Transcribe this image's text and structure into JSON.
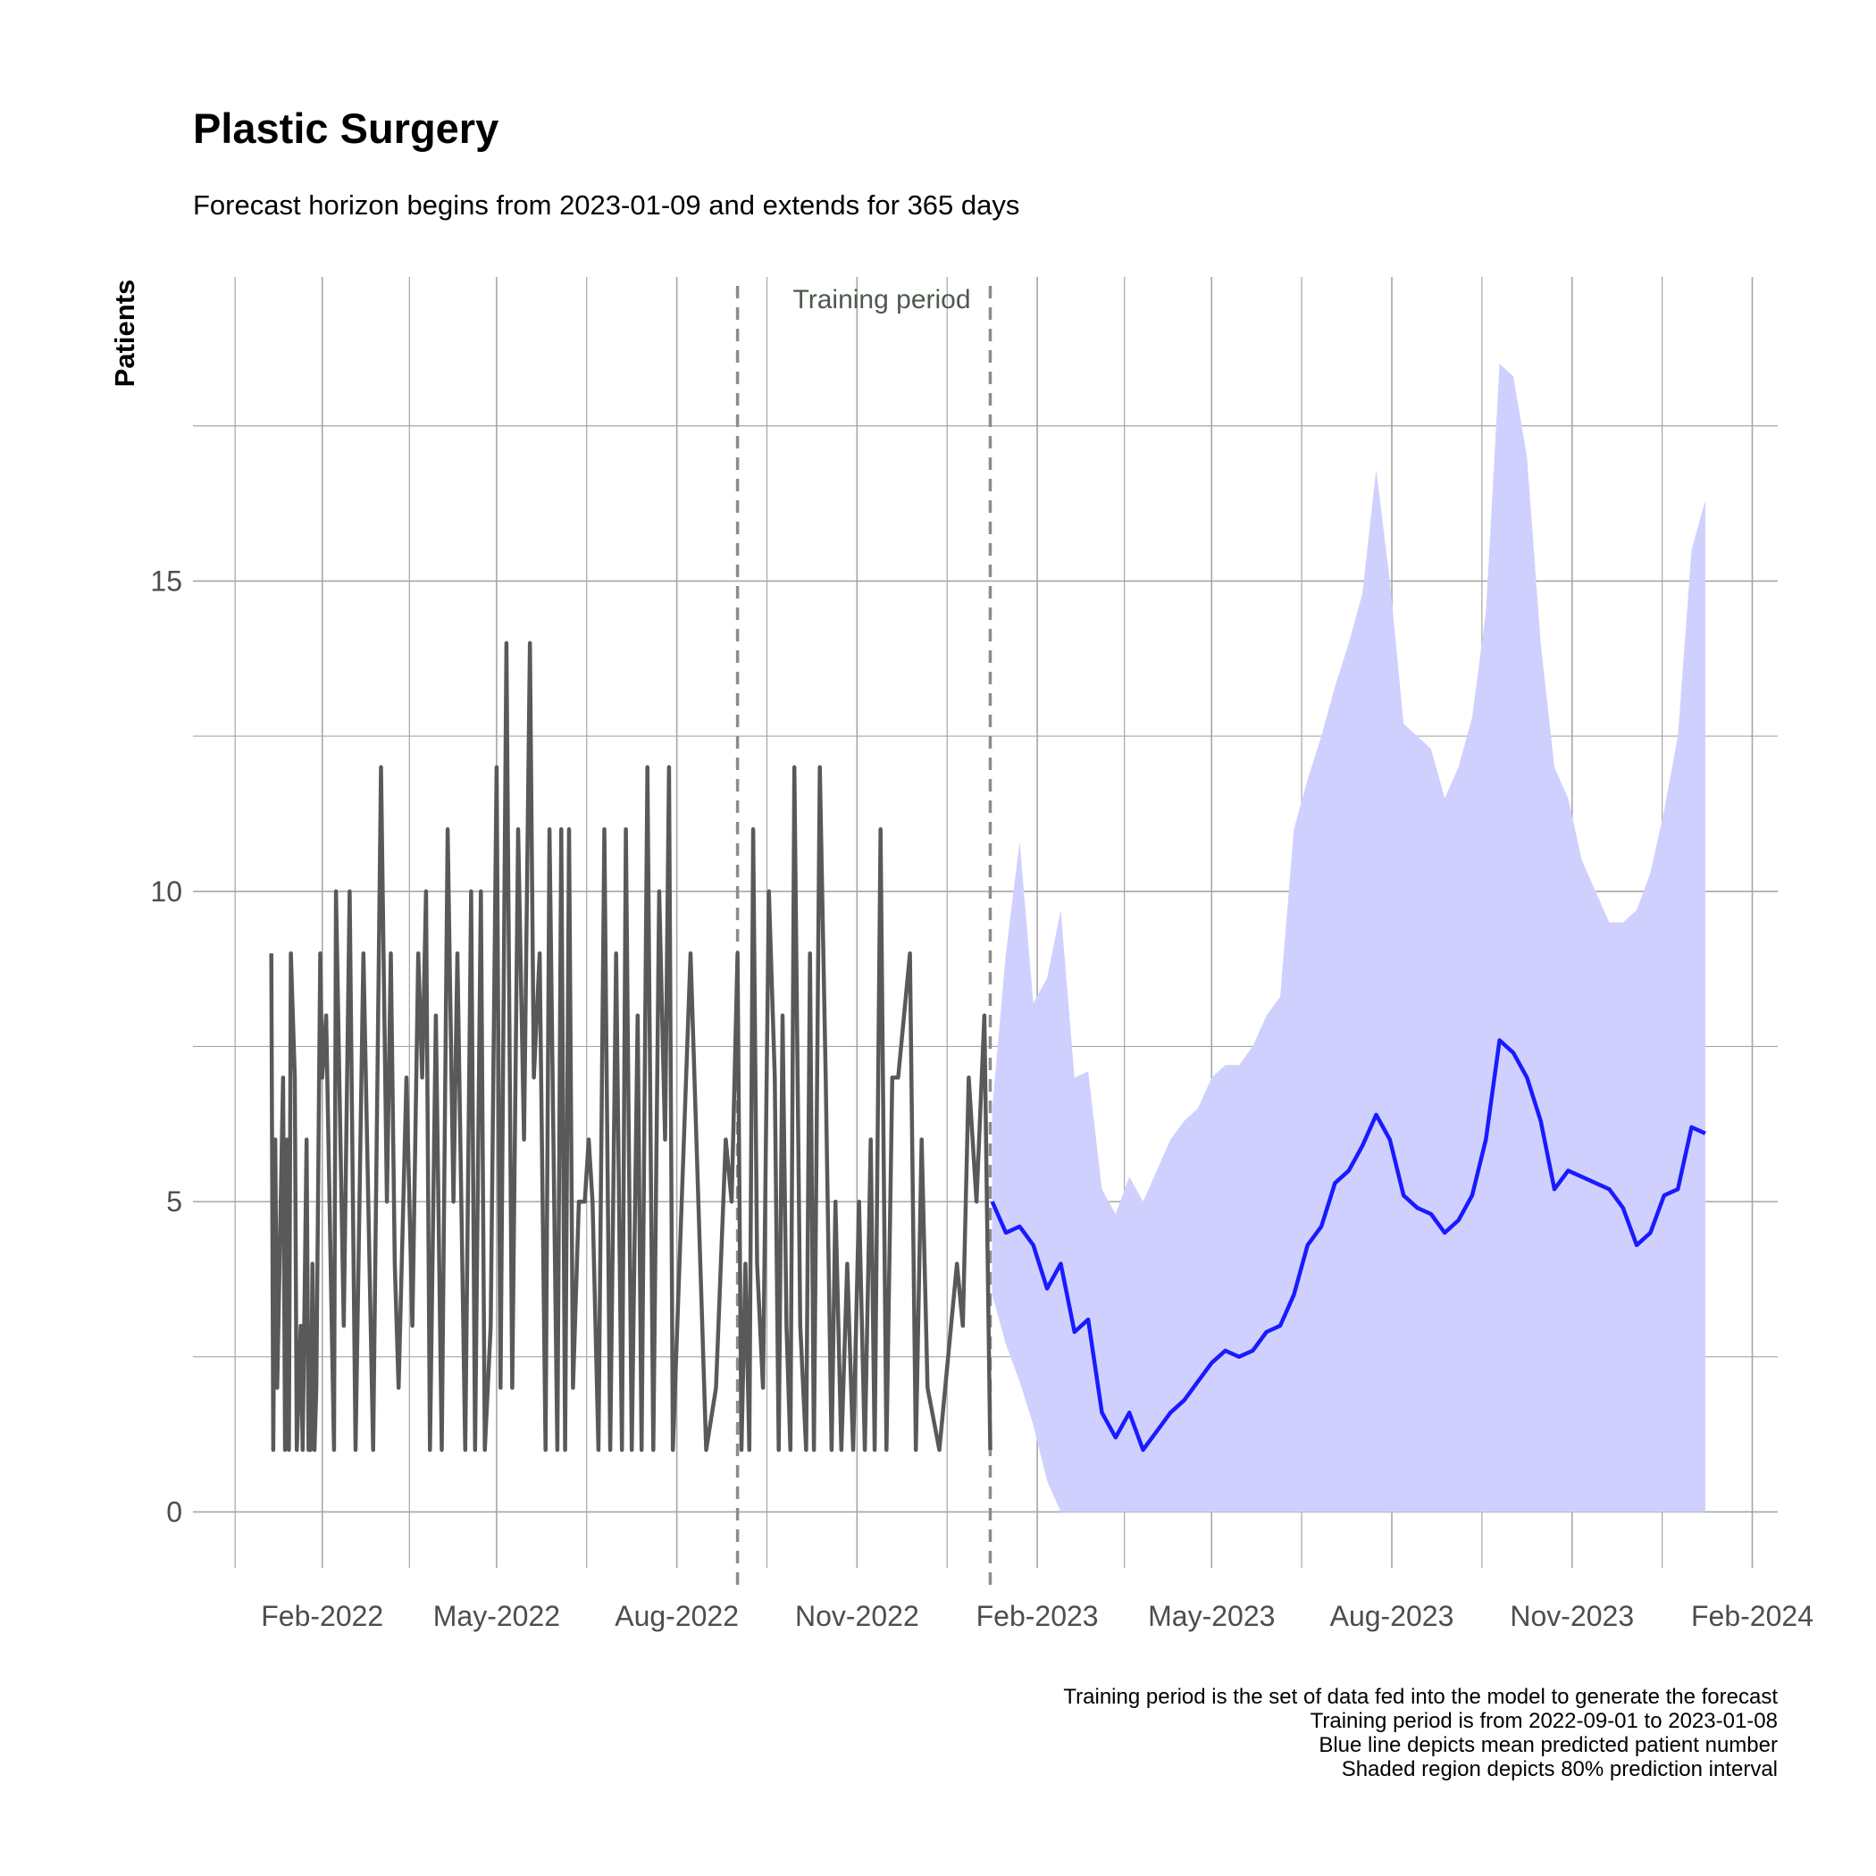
{
  "chart_data": {
    "type": "line",
    "title": "Plastic Surgery",
    "subtitle": "Forecast horizon begins from 2023-01-09 and extends for 365 days",
    "xlabel": "",
    "ylabel": "Patients",
    "ylim": [
      -0.9,
      19.9
    ],
    "xlim": [
      "2021-11-27",
      "2024-02-14"
    ],
    "yticks": [
      0,
      5,
      10,
      15
    ],
    "xticks": [
      {
        "date": "2022-02-01",
        "label": "Feb-2022"
      },
      {
        "date": "2022-05-01",
        "label": "May-2022"
      },
      {
        "date": "2022-08-01",
        "label": "Aug-2022"
      },
      {
        "date": "2022-11-01",
        "label": "Nov-2022"
      },
      {
        "date": "2023-02-01",
        "label": "Feb-2023"
      },
      {
        "date": "2023-05-01",
        "label": "May-2023"
      },
      {
        "date": "2023-08-01",
        "label": "Aug-2023"
      },
      {
        "date": "2023-11-01",
        "label": "Nov-2023"
      },
      {
        "date": "2024-02-01",
        "label": "Feb-2024"
      }
    ],
    "grid": true,
    "annotation": {
      "text": "Training period",
      "start": "2022-09-01",
      "end": "2023-01-08"
    },
    "colors": {
      "observed": "#595959",
      "forecast": "#1a1aff",
      "interval": "#d0d0ff",
      "vline": "#8c8c8c"
    },
    "series": [
      {
        "style": "observed",
        "x": [
          "2022-01-06",
          "2022-01-07",
          "2022-01-08",
          "2022-01-09",
          "2022-01-12",
          "2022-01-13",
          "2022-01-14",
          "2022-01-15",
          "2022-01-16",
          "2022-01-18",
          "2022-01-19",
          "2022-01-21",
          "2022-01-22",
          "2022-01-24",
          "2022-01-25",
          "2022-01-26",
          "2022-01-27",
          "2022-01-28",
          "2022-01-29",
          "2022-01-31",
          "2022-02-01",
          "2022-02-03",
          "2022-02-07",
          "2022-02-08",
          "2022-02-12",
          "2022-02-15",
          "2022-02-18",
          "2022-02-22",
          "2022-02-27",
          "2022-03-03",
          "2022-03-06",
          "2022-03-08",
          "2022-03-10",
          "2022-03-12",
          "2022-03-16",
          "2022-03-19",
          "2022-03-22",
          "2022-03-24",
          "2022-03-26",
          "2022-03-28",
          "2022-03-31",
          "2022-04-03",
          "2022-04-06",
          "2022-04-09",
          "2022-04-11",
          "2022-04-15",
          "2022-04-18",
          "2022-04-20",
          "2022-04-23",
          "2022-04-25",
          "2022-04-28",
          "2022-05-01",
          "2022-05-03",
          "2022-05-06",
          "2022-05-09",
          "2022-05-12",
          "2022-05-15",
          "2022-05-18",
          "2022-05-20",
          "2022-05-23",
          "2022-05-26",
          "2022-05-28",
          "2022-06-01",
          "2022-06-03",
          "2022-06-05",
          "2022-06-07",
          "2022-06-09",
          "2022-06-12",
          "2022-06-15",
          "2022-06-17",
          "2022-06-19",
          "2022-06-22",
          "2022-06-25",
          "2022-06-28",
          "2022-07-01",
          "2022-07-04",
          "2022-07-06",
          "2022-07-09",
          "2022-07-12",
          "2022-07-14",
          "2022-07-17",
          "2022-07-20",
          "2022-07-23",
          "2022-07-26",
          "2022-07-28",
          "2022-07-30",
          "2022-08-08",
          "2022-08-16",
          "2022-08-21",
          "2022-08-26",
          "2022-08-29",
          "2022-09-01",
          "2022-09-03",
          "2022-09-05",
          "2022-09-07",
          "2022-09-09",
          "2022-09-11",
          "2022-09-14",
          "2022-09-17",
          "2022-09-20",
          "2022-09-22",
          "2022-09-24",
          "2022-09-26",
          "2022-09-28",
          "2022-09-30",
          "2022-10-03",
          "2022-10-06",
          "2022-10-08",
          "2022-10-10",
          "2022-10-13",
          "2022-10-16",
          "2022-10-19",
          "2022-10-21",
          "2022-10-24",
          "2022-10-27",
          "2022-10-30",
          "2022-11-02",
          "2022-11-05",
          "2022-11-08",
          "2022-11-10",
          "2022-11-13",
          "2022-11-16",
          "2022-11-19",
          "2022-11-22",
          "2022-11-25",
          "2022-11-28",
          "2022-12-01",
          "2022-12-04",
          "2022-12-07",
          "2022-12-13",
          "2022-12-22",
          "2022-12-25",
          "2022-12-28",
          "2023-01-01",
          "2023-01-05",
          "2023-01-08"
        ],
        "y": [
          9,
          1,
          6,
          2,
          7,
          1,
          6,
          1,
          9,
          7,
          1,
          3,
          1,
          6,
          1,
          1,
          4,
          1,
          2,
          9,
          7,
          8,
          1,
          10,
          3,
          10,
          1,
          9,
          1,
          12,
          5,
          9,
          4,
          2,
          7,
          3,
          9,
          7,
          10,
          1,
          8,
          1,
          11,
          5,
          9,
          1,
          10,
          1,
          10,
          1,
          3,
          12,
          2,
          14,
          2,
          11,
          6,
          14,
          7,
          9,
          1,
          11,
          1,
          11,
          1,
          11,
          2,
          5,
          5,
          6,
          5,
          1,
          11,
          1,
          9,
          1,
          11,
          1,
          8,
          1,
          12,
          1,
          10,
          6,
          12,
          1,
          9,
          1,
          2,
          6,
          5,
          9,
          1,
          4,
          1,
          11,
          4,
          2,
          10,
          7,
          1,
          8,
          3,
          1,
          12,
          3,
          1,
          9,
          1,
          12,
          7,
          1,
          5,
          1,
          4,
          1,
          5,
          1,
          6,
          1,
          11,
          1,
          7,
          7,
          8,
          9,
          1,
          6,
          2,
          1,
          4,
          3,
          7,
          5,
          8,
          1
        ]
      },
      {
        "style": "forecast",
        "x": [
          "2023-01-09",
          "2023-01-16",
          "2023-01-23",
          "2023-01-30",
          "2023-02-06",
          "2023-02-13",
          "2023-02-20",
          "2023-02-27",
          "2023-03-06",
          "2023-03-13",
          "2023-03-20",
          "2023-03-27",
          "2023-04-03",
          "2023-04-10",
          "2023-04-17",
          "2023-04-24",
          "2023-05-01",
          "2023-05-08",
          "2023-05-15",
          "2023-05-22",
          "2023-05-29",
          "2023-06-05",
          "2023-06-12",
          "2023-06-19",
          "2023-06-26",
          "2023-07-03",
          "2023-07-10",
          "2023-07-17",
          "2023-07-24",
          "2023-07-31",
          "2023-08-07",
          "2023-08-14",
          "2023-08-21",
          "2023-08-28",
          "2023-09-04",
          "2023-09-11",
          "2023-09-18",
          "2023-09-25",
          "2023-10-02",
          "2023-10-09",
          "2023-10-16",
          "2023-10-23",
          "2023-10-30",
          "2023-11-06",
          "2023-11-13",
          "2023-11-20",
          "2023-11-27",
          "2023-12-04",
          "2023-12-11",
          "2023-12-18",
          "2023-12-25",
          "2024-01-01",
          "2024-01-08"
        ],
        "y": [
          5.0,
          4.5,
          4.6,
          4.3,
          3.6,
          4.0,
          2.9,
          3.1,
          1.6,
          1.2,
          1.6,
          1.0,
          1.3,
          1.6,
          1.8,
          2.1,
          2.4,
          2.6,
          2.5,
          2.6,
          2.9,
          3.0,
          3.5,
          4.3,
          4.6,
          5.3,
          5.5,
          5.9,
          6.4,
          6.0,
          5.1,
          4.9,
          4.8,
          4.5,
          4.7,
          5.1,
          6.0,
          7.6,
          7.4,
          7.0,
          6.3,
          5.2,
          5.5,
          5.4,
          5.3,
          5.2,
          4.9,
          4.3,
          4.5,
          5.1,
          5.2,
          6.2,
          6.1
        ],
        "lower": [
          3.5,
          2.7,
          2.1,
          1.4,
          0.5,
          0.0,
          0.0,
          0.0,
          0.0,
          0.0,
          0.0,
          0.0,
          0.0,
          0.0,
          0.0,
          0.0,
          0.0,
          0.0,
          0.0,
          0.0,
          0.0,
          0.0,
          0.0,
          0.0,
          0.0,
          0.0,
          0.0,
          0.0,
          0.0,
          0.0,
          0.0,
          0.0,
          0.0,
          0.0,
          0.0,
          0.0,
          0.0,
          0.0,
          0.0,
          0.0,
          0.0,
          0.0,
          0.0,
          0.0,
          0.0,
          0.0,
          0.0,
          0.0,
          0.0,
          0.0,
          0.0,
          0.0,
          0.0
        ],
        "upper": [
          6.5,
          9.0,
          10.8,
          8.2,
          8.6,
          9.7,
          7.0,
          7.1,
          5.2,
          4.8,
          5.4,
          5.0,
          5.5,
          6.0,
          6.3,
          6.5,
          7.0,
          7.2,
          7.2,
          7.5,
          8.0,
          8.3,
          11.0,
          11.8,
          12.5,
          13.3,
          14.0,
          14.8,
          16.8,
          15.0,
          12.7,
          12.5,
          12.3,
          11.5,
          12.0,
          12.8,
          14.5,
          18.5,
          18.3,
          17.0,
          14.0,
          12.0,
          11.5,
          10.5,
          10.0,
          9.5,
          9.5,
          9.7,
          10.3,
          11.3,
          12.5,
          15.5,
          16.3
        ]
      }
    ],
    "caption": [
      "Training period is the set of data fed into the model to generate the forecast",
      "Training period is from 2022-09-01 to 2023-01-08",
      "Blue line depicts mean predicted patient number",
      "Shaded region depicts 80% prediction interval"
    ]
  }
}
